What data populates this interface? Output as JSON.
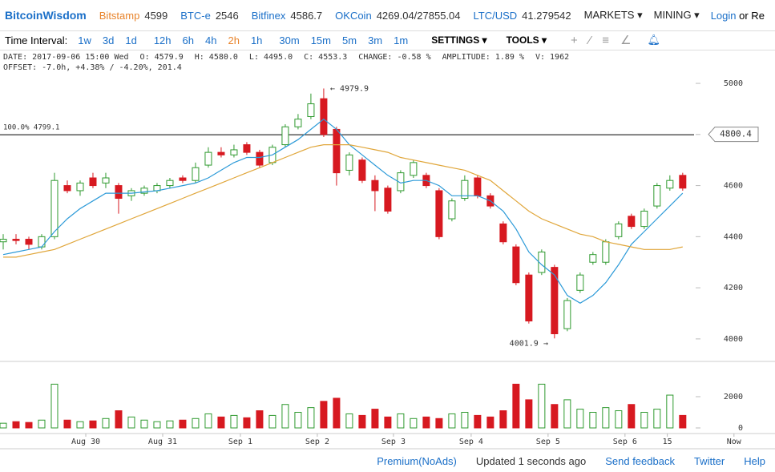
{
  "topbar": {
    "brand": "BitcoinWisdom",
    "tickers": [
      {
        "name": "Bitstamp",
        "price": "4599"
      },
      {
        "name": "BTC-e",
        "price": "2546"
      },
      {
        "name": "Bitfinex",
        "price": "4586.7"
      },
      {
        "name": "OKCoin",
        "price": "4269.04/27855.04"
      },
      {
        "name": "LTC/USD",
        "price": "41.279542"
      }
    ],
    "menus": [
      "MARKETS",
      "MINING"
    ],
    "login": "Login",
    "register": "or Re"
  },
  "toolbar": {
    "label": "Time Interval:",
    "intervals": [
      "1w",
      "3d",
      "1d",
      "12h",
      "6h",
      "4h",
      "2h",
      "1h",
      "30m",
      "15m",
      "5m",
      "3m",
      "1m"
    ],
    "active": "2h",
    "menus": [
      "SETTINGS",
      "TOOLS"
    ]
  },
  "info": {
    "line1": [
      "DATE: 2017-09-06 15:00 Wed",
      "O: 4579.9",
      "H: 4580.0",
      "L: 4495.0",
      "C: 4553.3",
      "CHANGE: -0.58 %",
      "AMPLITUDE: 1.89 %",
      "V: 1962"
    ],
    "line2": "OFFSET: -7.0h, +4.38% / -4.20%, 201.4"
  },
  "chart_data": {
    "type": "candlestick",
    "open": [
      4380,
      4390,
      4390,
      4360,
      4400,
      4600,
      4580,
      4630,
      4610,
      4600,
      4560,
      4570,
      4580,
      4600,
      4630,
      4620,
      4680,
      4730,
      4720,
      4760,
      4730,
      4690,
      4760,
      4830,
      4870,
      4940,
      4820,
      4660,
      4700,
      4620,
      4590,
      4580,
      4640,
      4640,
      4580,
      4470,
      4550,
      4630,
      4560,
      4450,
      4360,
      4250,
      4260,
      4280,
      4040,
      4190,
      4300,
      4300,
      4400,
      4480,
      4440,
      4520,
      4590,
      4640
    ],
    "high": [
      4410,
      4410,
      4400,
      4410,
      4650,
      4620,
      4620,
      4650,
      4650,
      4610,
      4590,
      4600,
      4610,
      4630,
      4640,
      4690,
      4750,
      4750,
      4760,
      4770,
      4740,
      4760,
      4840,
      4880,
      4960,
      4979.9,
      4830,
      4730,
      4710,
      4640,
      4600,
      4660,
      4700,
      4650,
      4590,
      4550,
      4640,
      4640,
      4570,
      4460,
      4370,
      4260,
      4350,
      4290,
      4160,
      4260,
      4340,
      4390,
      4460,
      4490,
      4510,
      4610,
      4640,
      4650
    ],
    "low": [
      4350,
      4370,
      4350,
      4350,
      4390,
      4570,
      4560,
      4590,
      4590,
      4490,
      4540,
      4560,
      4570,
      4590,
      4610,
      4610,
      4670,
      4710,
      4710,
      4720,
      4670,
      4680,
      4750,
      4820,
      4860,
      4790,
      4600,
      4640,
      4610,
      4500,
      4490,
      4570,
      4630,
      4590,
      4390,
      4460,
      4540,
      4550,
      4510,
      4370,
      4210,
      4060,
      4250,
      4001.9,
      4030,
      4180,
      4290,
      4290,
      4390,
      4430,
      4430,
      4510,
      4580,
      4580
    ],
    "close": [
      4390,
      4385,
      4370,
      4400,
      4620,
      4580,
      4610,
      4600,
      4630,
      4550,
      4580,
      4590,
      4600,
      4620,
      4620,
      4670,
      4730,
      4720,
      4740,
      4730,
      4680,
      4750,
      4830,
      4860,
      4920,
      4800,
      4650,
      4720,
      4620,
      4580,
      4500,
      4650,
      4690,
      4600,
      4400,
      4540,
      4620,
      4560,
      4520,
      4380,
      4220,
      4070,
      4340,
      4020,
      4150,
      4250,
      4330,
      4380,
      4450,
      4440,
      4500,
      4600,
      4620,
      4590
    ],
    "volume": [
      300,
      400,
      350,
      500,
      2800,
      500,
      400,
      450,
      600,
      1100,
      700,
      500,
      400,
      450,
      500,
      600,
      900,
      700,
      800,
      650,
      1100,
      800,
      1500,
      1000,
      1300,
      1700,
      1900,
      900,
      800,
      1200,
      700,
      900,
      600,
      700,
      600,
      900,
      1000,
      800,
      700,
      1100,
      2800,
      1800,
      2800,
      1500,
      1800,
      1200,
      1000,
      1300,
      1100,
      1500,
      1000,
      1200,
      2100,
      800
    ],
    "up_color": "#2f9a2f",
    "down_color": "#d71920",
    "series": [
      {
        "color": "#2c9ad8",
        "values": [
          4330,
          4340,
          4350,
          4360,
          4420,
          4470,
          4510,
          4540,
          4570,
          4570,
          4570,
          4575,
          4580,
          4590,
          4600,
          4610,
          4630,
          4660,
          4690,
          4710,
          4710,
          4720,
          4750,
          4780,
          4820,
          4860,
          4820,
          4760,
          4720,
          4680,
          4640,
          4610,
          4620,
          4620,
          4600,
          4560,
          4560,
          4560,
          4540,
          4500,
          4430,
          4340,
          4290,
          4250,
          4170,
          4140,
          4170,
          4220,
          4290,
          4370,
          4420,
          4470,
          4520,
          4570
        ]
      },
      {
        "color": "#e0a63a",
        "values": [
          4320,
          4320,
          4330,
          4340,
          4350,
          4370,
          4390,
          4410,
          4430,
          4450,
          4470,
          4490,
          4510,
          4530,
          4550,
          4570,
          4590,
          4610,
          4630,
          4650,
          4670,
          4690,
          4710,
          4730,
          4750,
          4760,
          4760,
          4760,
          4750,
          4740,
          4730,
          4710,
          4700,
          4690,
          4680,
          4670,
          4660,
          4640,
          4620,
          4580,
          4540,
          4500,
          4470,
          4450,
          4430,
          4410,
          4400,
          4380,
          4370,
          4360,
          4350,
          4350,
          4350,
          4360
        ]
      }
    ],
    "ylim": [
      3915,
      5044
    ],
    "yticks": [
      4000,
      4200,
      4400,
      4600,
      4800,
      5000
    ],
    "vlim": [
      -308,
      4205
    ],
    "vticks": [
      0,
      2000
    ],
    "xlim": [
      -0.25,
      60.2
    ],
    "xticks": [
      {
        "value": 6.44,
        "label": "Aug 30"
      },
      {
        "value": 12.44,
        "label": "Aug 31"
      },
      {
        "value": 18.5,
        "label": "Sep 1"
      },
      {
        "value": 24.5,
        "label": "Sep 2"
      },
      {
        "value": 30.44,
        "label": "Sep 3"
      },
      {
        "value": 36.5,
        "label": "Sep 4"
      },
      {
        "value": 42.5,
        "label": "Sep 5"
      },
      {
        "value": 48.5,
        "label": "Sep 6"
      },
      {
        "value": 51.8,
        "label": "15"
      },
      {
        "value": 57,
        "label": "Now"
      }
    ],
    "hline": {
      "value": 4799.1,
      "label": "100.0% 4799.1"
    },
    "last_price": {
      "value": 4800.4,
      "label": "4800.4"
    },
    "annotations": [
      {
        "index": 25,
        "value": 4979.9,
        "label": "← 4979.9"
      },
      {
        "index": 43,
        "value": 4001.9,
        "label": "4001.9 →"
      }
    ]
  },
  "footer": [
    "Premium(NoAds)",
    "Updated 1 seconds ago",
    "Send feedback",
    "Twitter",
    "Help"
  ]
}
